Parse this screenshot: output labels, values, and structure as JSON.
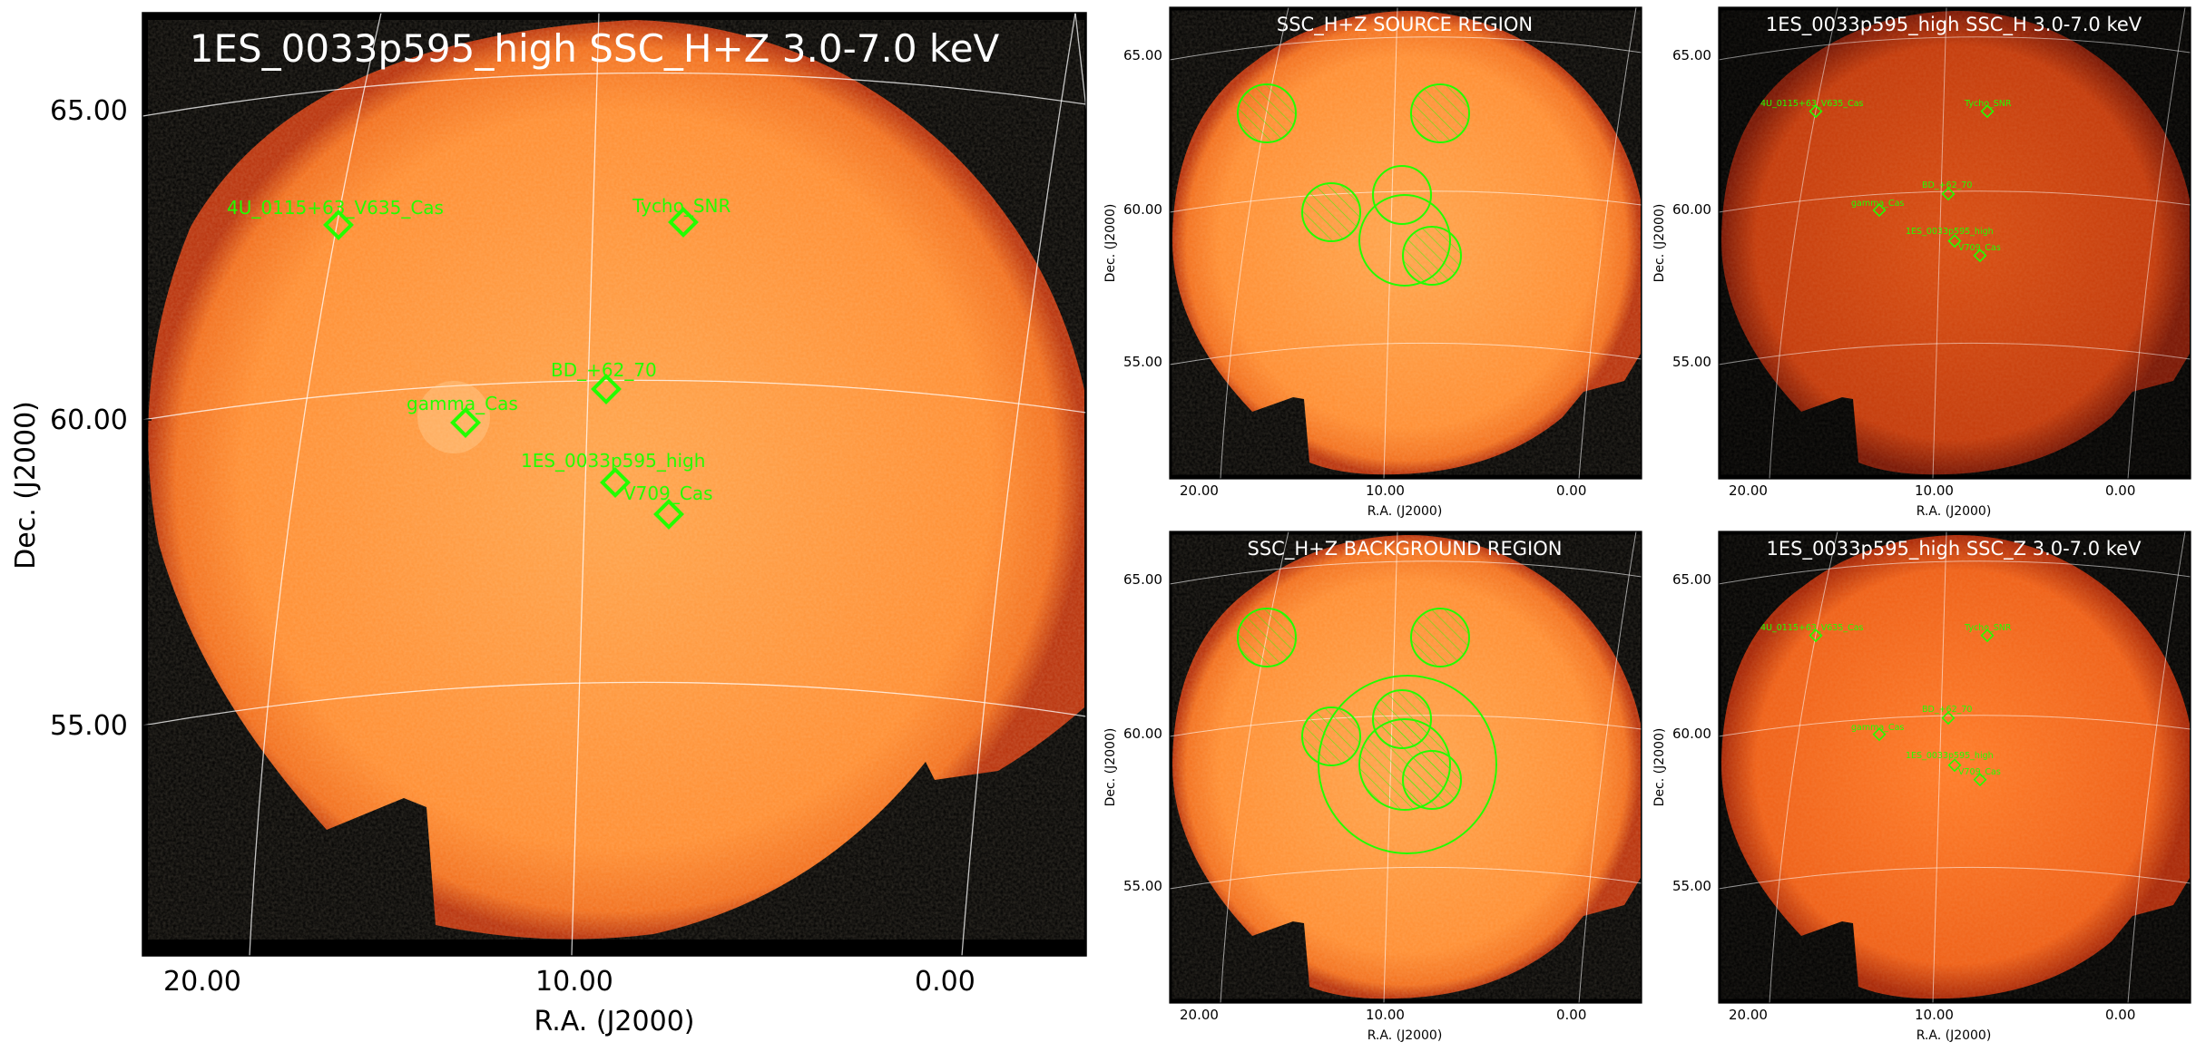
{
  "main": {
    "title": "1ES_0033p595_high SSC_H+Z 3.0-7.0 keV",
    "y_ticks": [
      "65.00",
      "60.00",
      "55.00"
    ],
    "x_ticks": [
      "20.00",
      "10.00",
      "0.00"
    ],
    "y_label": "Dec. (J2000)",
    "x_label": "R.A. (J2000)",
    "sources": [
      {
        "label": "4U_0115+63_V635_Cas"
      },
      {
        "label": "Tycho_SNR"
      },
      {
        "label": "BD_+62_70"
      },
      {
        "label": "gamma_Cas"
      },
      {
        "label": "1ES_0033p595_high"
      },
      {
        "label": "V709_Cas"
      }
    ]
  },
  "panels": [
    {
      "title": "SSC_H+Z SOURCE REGION"
    },
    {
      "title": "1ES_0033p595_high SSC_H 3.0-7.0 keV"
    },
    {
      "title": "SSC_H+Z BACKGROUND REGION"
    },
    {
      "title": "1ES_0033p595_high SSC_Z 3.0-7.0 keV"
    }
  ],
  "small_axes": {
    "y_ticks": [
      "65.00",
      "60.00",
      "55.00"
    ],
    "x_ticks": [
      "20.00",
      "10.00",
      "0.00"
    ],
    "y_label": "Dec. (J2000)",
    "x_label": "R.A. (J2000)"
  },
  "colors": {
    "bright_orange": "#ff8a2a",
    "dark_red": "#c43a0a",
    "marker_green": "#22ff00",
    "background": "#000000"
  }
}
